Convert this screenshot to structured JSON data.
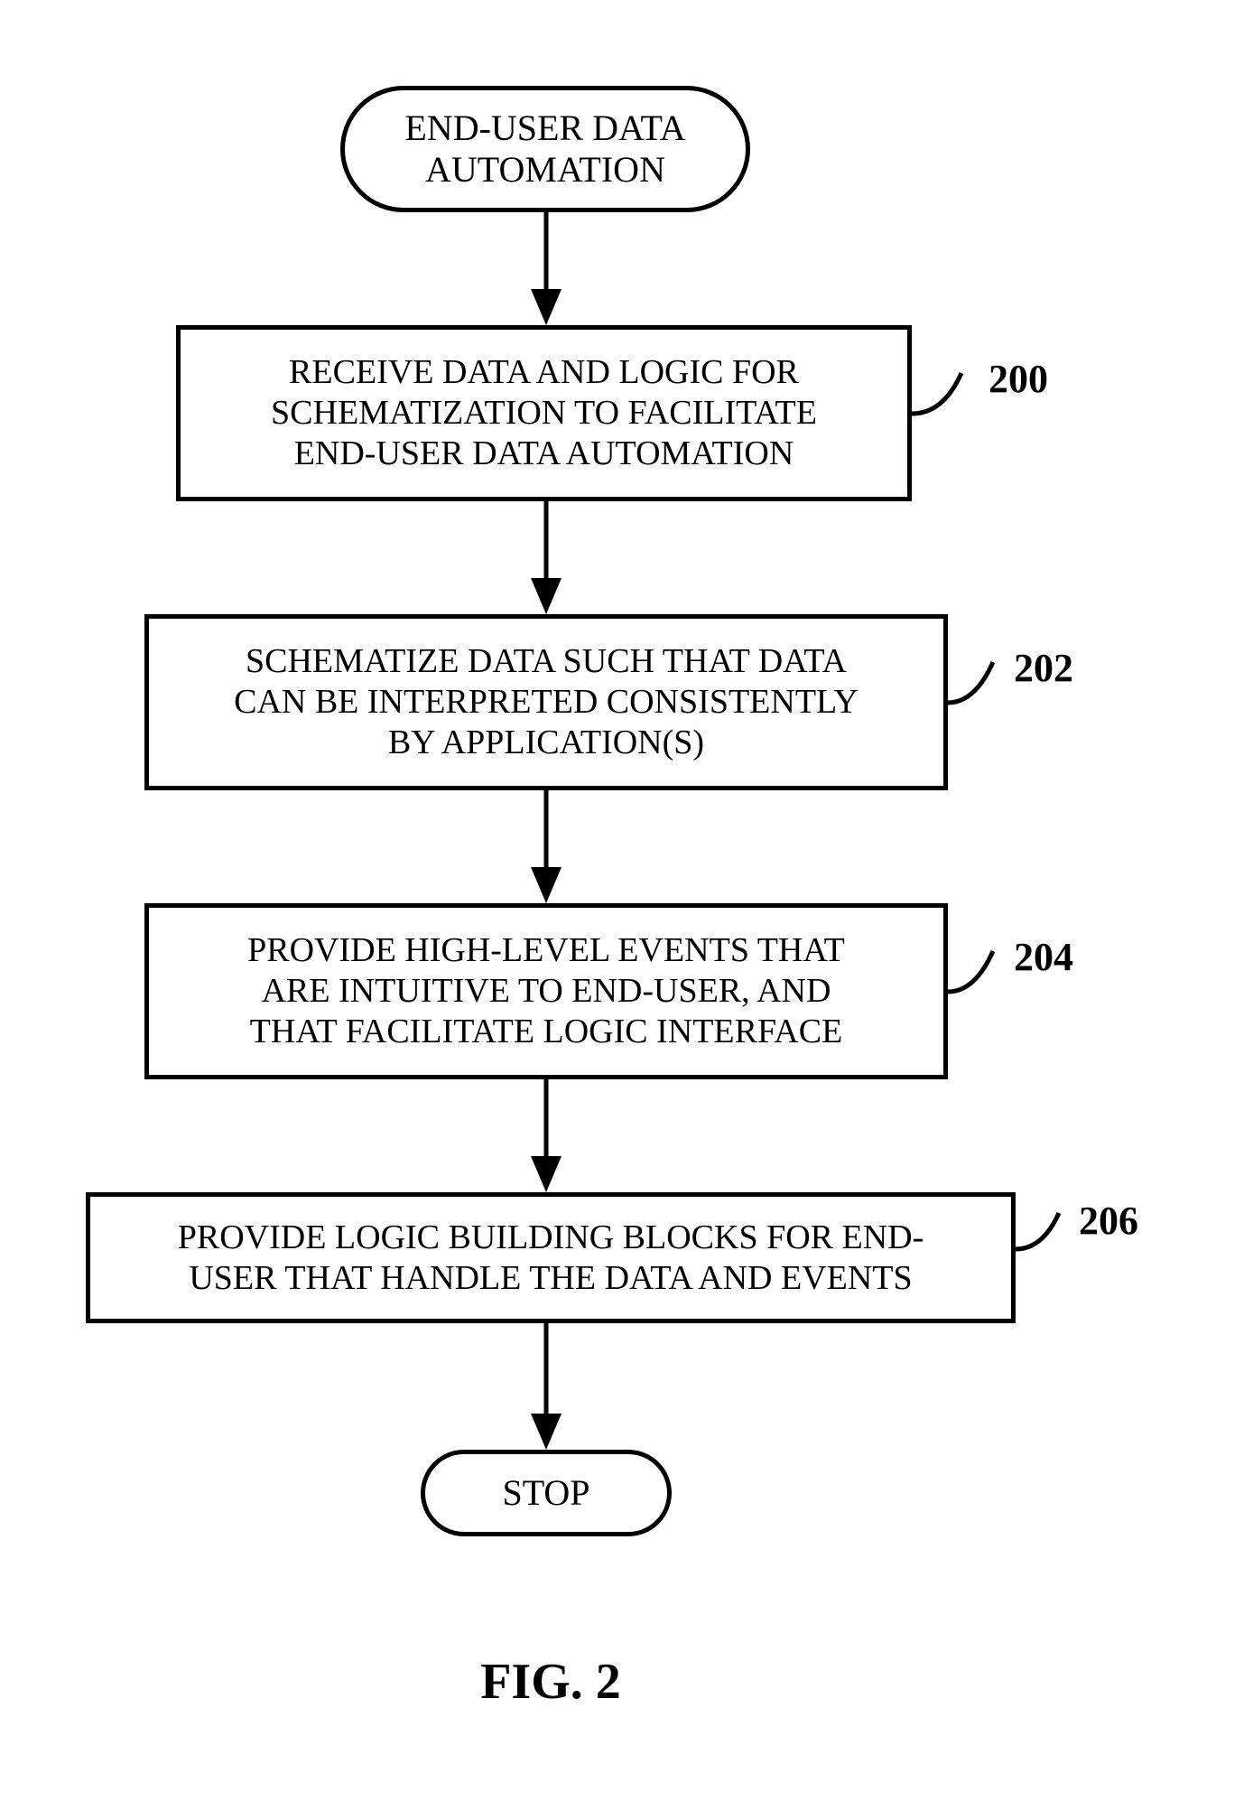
{
  "diagram": {
    "type": "flowchart",
    "title_node": {
      "text": "END-USER DATA\nAUTOMATION"
    },
    "steps": [
      {
        "text": "RECEIVE DATA AND LOGIC FOR\nSCHEMATIZATION TO FACILITATE\nEND-USER DATA AUTOMATION",
        "ref": "200"
      },
      {
        "text": "SCHEMATIZE DATA SUCH THAT DATA\nCAN BE INTERPRETED CONSISTENTLY\nBY APPLICATION(S)",
        "ref": "202"
      },
      {
        "text": "PROVIDE HIGH-LEVEL EVENTS THAT\nARE INTUITIVE TO END-USER, AND\nTHAT FACILITATE LOGIC INTERFACE",
        "ref": "204"
      },
      {
        "text": "PROVIDE LOGIC BUILDING BLOCKS FOR END-\nUSER THAT HANDLE THE DATA AND EVENTS",
        "ref": "206"
      }
    ],
    "stop_node": {
      "text": "STOP"
    },
    "figure_label": "FIG. 2",
    "style": {
      "stroke_color": "#000000",
      "stroke_width": 5,
      "background_color": "#ffffff",
      "node_font_size": 38,
      "terminator_font_size": 40,
      "stop_font_size": 40,
      "ref_font_size": 44,
      "fig_font_size": 56,
      "arrow_head_w": 34,
      "arrow_head_h": 40
    }
  }
}
